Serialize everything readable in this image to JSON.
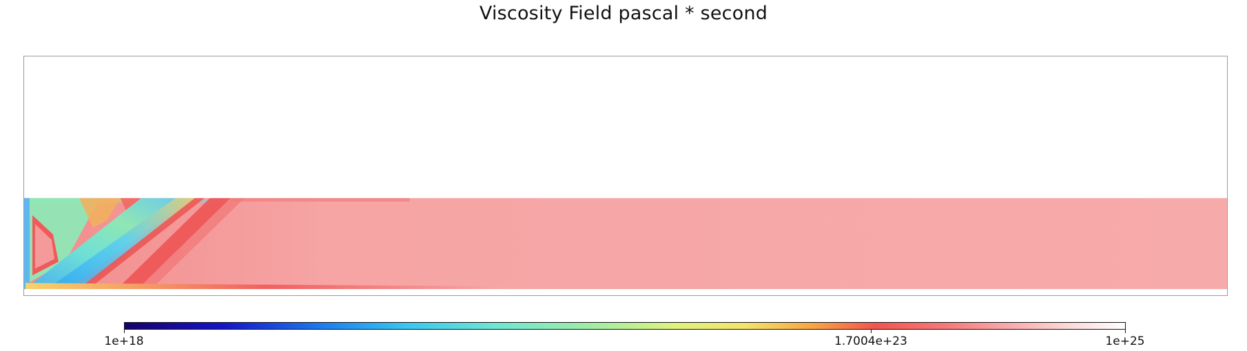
{
  "chart_data": {
    "type": "heatmap",
    "title": "Viscosity Field pascal * second",
    "colorbar": {
      "scale": "log",
      "min": "1e+18",
      "max": "1e+25",
      "tick_labels": [
        "1e+18",
        "1.7004e+23",
        "1e+25"
      ],
      "tick_values": [
        1e+18,
        1.7004e+23,
        1e+25
      ],
      "colormap_stops": [
        "#16006b",
        "#1515c9",
        "#1c7ff0",
        "#37c6f0",
        "#6fe6d3",
        "#9ceca8",
        "#dff27e",
        "#f3e36a",
        "#f8a244",
        "#f4544d",
        "#f6787a",
        "#f9a7a8",
        "#fbd6d6",
        "#ffffff"
      ]
    },
    "field_description_colors": {
      "background_slab": "#f6a8a8",
      "high_strain_band": "#ee5a5a",
      "weak_zone": "#6fd4e6",
      "empty_region": "#ffffff"
    }
  }
}
